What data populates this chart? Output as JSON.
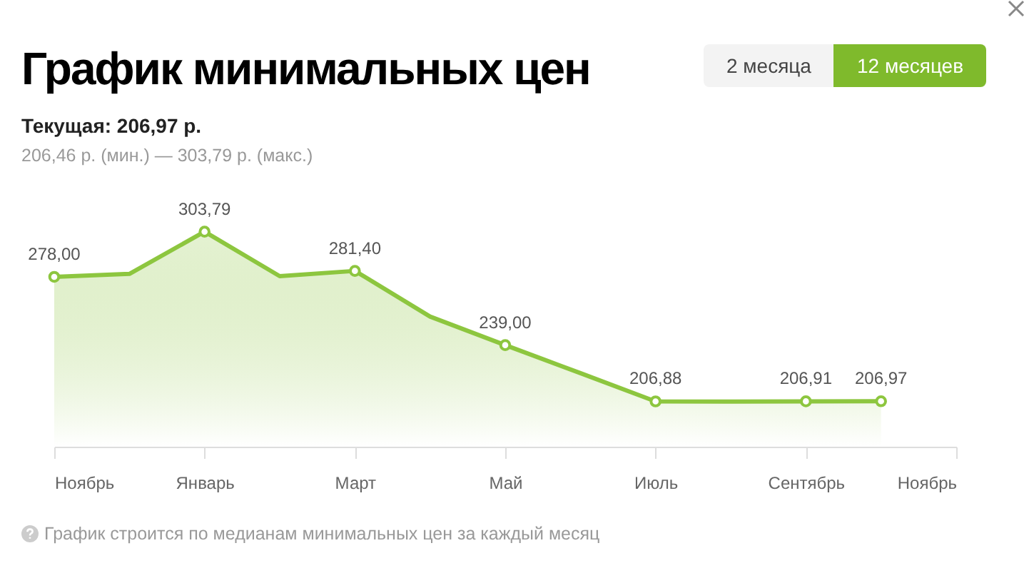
{
  "chart_data": {
    "type": "area",
    "title": "График минимальных цен",
    "subtitle": "Текущая: 206,97 р.",
    "annotations": [
      "206,46 р. (мин.) — 303,79 р. (макс.)",
      "2 месяца",
      "12 месяцев",
      "График строится по медианам минимальных цен за каждый месяц"
    ],
    "categories": [
      "Ноябрь",
      null,
      "Январь",
      null,
      "Март",
      null,
      "Май",
      null,
      "Июль",
      null,
      "Сентябрь",
      null,
      "Ноябрь"
    ],
    "values": [
      278.0,
      279.7,
      303.79,
      278.4,
      281.4,
      255.3,
      239.0,
      223,
      206.88,
      206.8,
      206.91,
      206.97,
      null
    ],
    "value_labels": [
      "278,00",
      null,
      "303,79",
      null,
      "281,40",
      null,
      "239,00",
      null,
      "206,88",
      null,
      "206,91",
      "206,97",
      null
    ],
    "color": "#8dc63f",
    "ylim": [
      181,
      322
    ],
    "tick_labels": "x",
    "marker": "circle",
    "grid": false
  }
}
